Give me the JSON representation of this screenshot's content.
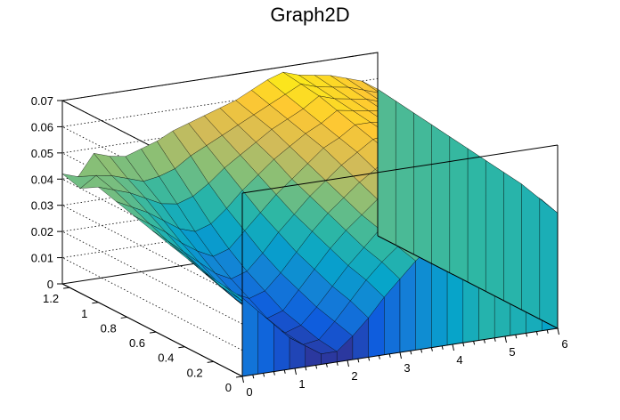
{
  "chart_data": {
    "type": "surface",
    "title": "Graph2D",
    "xlim": [
      0,
      6
    ],
    "ylim": [
      0,
      1.25
    ],
    "zlim": [
      0,
      0.07
    ],
    "x_ticks": [
      "0",
      "1",
      "2",
      "3",
      "4",
      "5",
      "6"
    ],
    "y_ticks": [
      "0",
      "0.2",
      "0.4",
      "0.6",
      "0.8",
      "1",
      "1.2"
    ],
    "z_ticks": [
      "0",
      "0.01",
      "0.02",
      "0.03",
      "0.04",
      "0.05",
      "0.06",
      "0.07"
    ],
    "colormap": [
      "#352a87",
      "#0f5cdd",
      "#1481d6",
      "#06a4ca",
      "#2eb7a4",
      "#87bf77",
      "#d1bb59",
      "#fec832",
      "#f9fb0e"
    ],
    "grid": true,
    "grid_x": [
      0,
      0.3,
      0.6,
      0.9,
      1.2,
      1.5,
      1.8,
      2.1,
      2.4,
      2.7,
      3.0,
      3.3,
      3.6,
      3.9,
      4.2,
      4.5,
      4.8,
      5.1,
      5.4,
      5.7,
      6.0
    ],
    "grid_y": [
      0,
      0.125,
      0.25,
      0.375,
      0.5,
      0.625,
      0.75,
      0.875,
      1.0,
      1.125,
      1.25
    ],
    "z": [
      [
        0.03,
        0.024,
        0.018,
        0.012,
        0.008,
        0.004,
        0.004,
        0.009,
        0.015,
        0.022,
        0.028,
        0.034,
        0.039,
        0.044,
        0.05,
        0.055,
        0.055,
        0.054,
        0.052,
        0.05,
        0.044
      ],
      [
        0.031,
        0.025,
        0.019,
        0.013,
        0.008,
        0.004,
        0.005,
        0.011,
        0.018,
        0.025,
        0.031,
        0.036,
        0.041,
        0.046,
        0.052,
        0.056,
        0.056,
        0.055,
        0.053,
        0.051,
        0.046
      ],
      [
        0.032,
        0.026,
        0.02,
        0.014,
        0.009,
        0.005,
        0.007,
        0.013,
        0.02,
        0.027,
        0.033,
        0.039,
        0.044,
        0.049,
        0.054,
        0.057,
        0.057,
        0.056,
        0.054,
        0.052,
        0.048
      ],
      [
        0.034,
        0.028,
        0.022,
        0.016,
        0.011,
        0.007,
        0.009,
        0.016,
        0.023,
        0.03,
        0.036,
        0.041,
        0.046,
        0.051,
        0.056,
        0.058,
        0.058,
        0.057,
        0.055,
        0.053,
        0.049
      ],
      [
        0.036,
        0.031,
        0.025,
        0.019,
        0.014,
        0.011,
        0.013,
        0.019,
        0.026,
        0.033,
        0.039,
        0.044,
        0.049,
        0.053,
        0.058,
        0.059,
        0.059,
        0.058,
        0.056,
        0.054,
        0.05
      ],
      [
        0.038,
        0.033,
        0.028,
        0.023,
        0.018,
        0.015,
        0.017,
        0.023,
        0.03,
        0.036,
        0.042,
        0.047,
        0.052,
        0.056,
        0.06,
        0.061,
        0.06,
        0.059,
        0.057,
        0.055,
        0.051
      ],
      [
        0.04,
        0.036,
        0.032,
        0.027,
        0.023,
        0.02,
        0.022,
        0.028,
        0.034,
        0.04,
        0.045,
        0.05,
        0.055,
        0.058,
        0.062,
        0.062,
        0.061,
        0.06,
        0.058,
        0.056,
        0.052
      ],
      [
        0.042,
        0.039,
        0.036,
        0.032,
        0.028,
        0.026,
        0.028,
        0.033,
        0.039,
        0.044,
        0.049,
        0.053,
        0.057,
        0.06,
        0.064,
        0.063,
        0.062,
        0.061,
        0.059,
        0.057,
        0.053
      ],
      [
        0.044,
        0.042,
        0.04,
        0.037,
        0.034,
        0.033,
        0.035,
        0.039,
        0.044,
        0.048,
        0.052,
        0.056,
        0.059,
        0.062,
        0.066,
        0.064,
        0.063,
        0.062,
        0.06,
        0.058,
        0.054
      ],
      [
        0.04,
        0.044,
        0.043,
        0.041,
        0.039,
        0.04,
        0.042,
        0.046,
        0.049,
        0.052,
        0.055,
        0.058,
        0.061,
        0.064,
        0.067,
        0.065,
        0.064,
        0.063,
        0.061,
        0.059,
        0.055
      ],
      [
        0.042,
        0.04,
        0.048,
        0.046,
        0.045,
        0.047,
        0.049,
        0.052,
        0.054,
        0.056,
        0.058,
        0.06,
        0.063,
        0.066,
        0.068,
        0.066,
        0.065,
        0.064,
        0.062,
        0.06,
        0.056
      ]
    ]
  }
}
